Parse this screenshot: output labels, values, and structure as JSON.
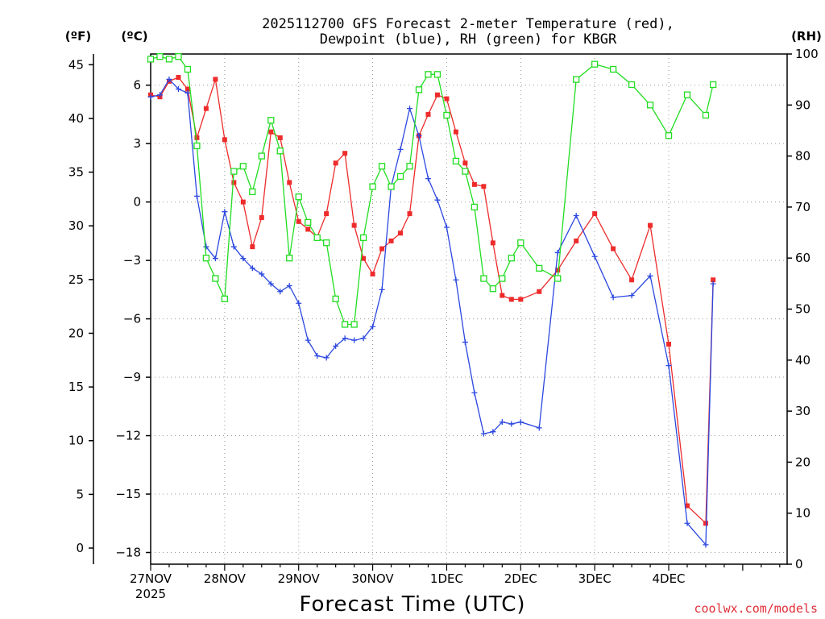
{
  "chart_data": {
    "type": "line",
    "title_lines": [
      "2025112700 GFS Forecast 2-meter Temperature (red),",
      "Dewpoint (blue), RH (green) for KBGR"
    ],
    "xlabel": "Forecast Time (UTC)",
    "left_units_f": "(ºF)",
    "left_units_c": "(ºC)",
    "right_units": "(RH)",
    "credit": "coolwx.com/models",
    "x_range_days": [
      0,
      8.6
    ],
    "x_ticks": [
      {
        "day": 0,
        "label": "27NOV",
        "sub": "2025"
      },
      {
        "day": 1,
        "label": "28NOV",
        "sub": ""
      },
      {
        "day": 2,
        "label": "29NOV",
        "sub": ""
      },
      {
        "day": 3,
        "label": "30NOV",
        "sub": ""
      },
      {
        "day": 4,
        "label": "1DEC",
        "sub": ""
      },
      {
        "day": 5,
        "label": "2DEC",
        "sub": ""
      },
      {
        "day": 6,
        "label": "3DEC",
        "sub": ""
      },
      {
        "day": 7,
        "label": "4DEC",
        "sub": ""
      }
    ],
    "f_axis": {
      "range": [
        -1.5,
        46
      ],
      "ticks": [
        0,
        5,
        10,
        15,
        20,
        25,
        30,
        35,
        40,
        45
      ]
    },
    "c_axis": {
      "range": [
        -18.6,
        7.6
      ],
      "ticks": [
        -18,
        -15,
        -12,
        -9,
        -6,
        -3,
        0,
        3,
        6
      ]
    },
    "rh_axis": {
      "range": [
        0,
        100
      ],
      "ticks": [
        0,
        10,
        20,
        30,
        40,
        50,
        60,
        70,
        80,
        90,
        100
      ]
    },
    "series": [
      {
        "name": "Temperature (°C)",
        "color": "#ee2b2b",
        "marker": "filled-square",
        "axis": "c",
        "x": [
          0,
          0.125,
          0.25,
          0.375,
          0.5,
          0.625,
          0.75,
          0.875,
          1,
          1.125,
          1.25,
          1.375,
          1.5,
          1.625,
          1.75,
          1.875,
          2,
          2.125,
          2.25,
          2.375,
          2.5,
          2.625,
          2.75,
          2.875,
          3,
          3.125,
          3.25,
          3.375,
          3.5,
          3.625,
          3.75,
          3.875,
          4,
          4.125,
          4.25,
          4.375,
          4.5,
          4.625,
          4.75,
          4.875,
          5,
          5.25,
          5.5,
          5.75,
          6,
          6.25,
          6.5,
          6.75,
          7,
          7.25,
          7.5,
          7.6
        ],
        "values": [
          5.5,
          5.4,
          6.2,
          6.4,
          5.8,
          3.3,
          4.8,
          6.3,
          3.2,
          1.0,
          0.0,
          -2.3,
          -0.8,
          3.6,
          3.3,
          1.0,
          -1.0,
          -1.4,
          -1.8,
          -0.6,
          2.0,
          2.5,
          -1.2,
          -2.9,
          -3.7,
          -2.4,
          -2.0,
          -1.6,
          -0.6,
          3.4,
          4.5,
          5.5,
          5.3,
          3.6,
          2.0,
          0.9,
          0.8,
          -2.1,
          -4.8,
          -5.0,
          -5.0,
          -4.6,
          -3.5,
          -2.0,
          -0.6,
          -2.4,
          -4.0,
          -1.2,
          -7.3,
          -15.6,
          -16.5,
          -4.0
        ]
      },
      {
        "name": "Dewpoint (°C)",
        "color": "#2b47e0",
        "marker": "plus",
        "axis": "c",
        "x": [
          0,
          0.125,
          0.25,
          0.375,
          0.5,
          0.625,
          0.75,
          0.875,
          1,
          1.125,
          1.25,
          1.375,
          1.5,
          1.625,
          1.75,
          1.875,
          2,
          2.125,
          2.25,
          2.375,
          2.5,
          2.625,
          2.75,
          2.875,
          3,
          3.125,
          3.25,
          3.375,
          3.5,
          3.625,
          3.75,
          3.875,
          4,
          4.125,
          4.25,
          4.375,
          4.5,
          4.625,
          4.75,
          4.875,
          5,
          5.25,
          5.5,
          5.75,
          6,
          6.25,
          6.5,
          6.75,
          7,
          7.25,
          7.5,
          7.6
        ],
        "values": [
          5.4,
          5.5,
          6.3,
          5.8,
          5.6,
          0.3,
          -2.3,
          -2.9,
          -0.5,
          -2.3,
          -2.9,
          -3.4,
          -3.7,
          -4.2,
          -4.6,
          -4.3,
          -5.2,
          -7.1,
          -7.9,
          -8.0,
          -7.4,
          -7.0,
          -7.1,
          -7.0,
          -6.4,
          -4.5,
          0.8,
          2.7,
          4.8,
          3.4,
          1.2,
          0.1,
          -1.3,
          -4.0,
          -7.2,
          -9.8,
          -11.9,
          -11.8,
          -11.3,
          -11.4,
          -11.3,
          -11.6,
          -2.6,
          -0.7,
          -2.8,
          -4.9,
          -4.8,
          -3.8,
          -8.4,
          -16.5,
          -17.6,
          -4.2
        ]
      },
      {
        "name": "RH (%)",
        "color": "#22dd22",
        "marker": "open-square",
        "axis": "rh",
        "x": [
          0,
          0.125,
          0.25,
          0.375,
          0.5,
          0.625,
          0.75,
          0.875,
          1,
          1.125,
          1.25,
          1.375,
          1.5,
          1.625,
          1.75,
          1.875,
          2,
          2.125,
          2.25,
          2.375,
          2.5,
          2.625,
          2.75,
          2.875,
          3,
          3.125,
          3.25,
          3.375,
          3.5,
          3.625,
          3.75,
          3.875,
          4,
          4.125,
          4.25,
          4.375,
          4.5,
          4.625,
          4.75,
          4.875,
          5,
          5.25,
          5.5,
          5.75,
          6,
          6.25,
          6.5,
          6.75,
          7,
          7.25,
          7.5,
          7.6
        ],
        "values": [
          99,
          99.5,
          99,
          99.5,
          97,
          82,
          60,
          56,
          52,
          77,
          78,
          73,
          80,
          87,
          81,
          60,
          72,
          67,
          64,
          63,
          52,
          47,
          47,
          64,
          74,
          78,
          74,
          76,
          78,
          93,
          96,
          96,
          88,
          79,
          77,
          70,
          56,
          54,
          56,
          60,
          63,
          58,
          56,
          95,
          98,
          97,
          94,
          90,
          84,
          92,
          88,
          94
        ]
      }
    ]
  }
}
